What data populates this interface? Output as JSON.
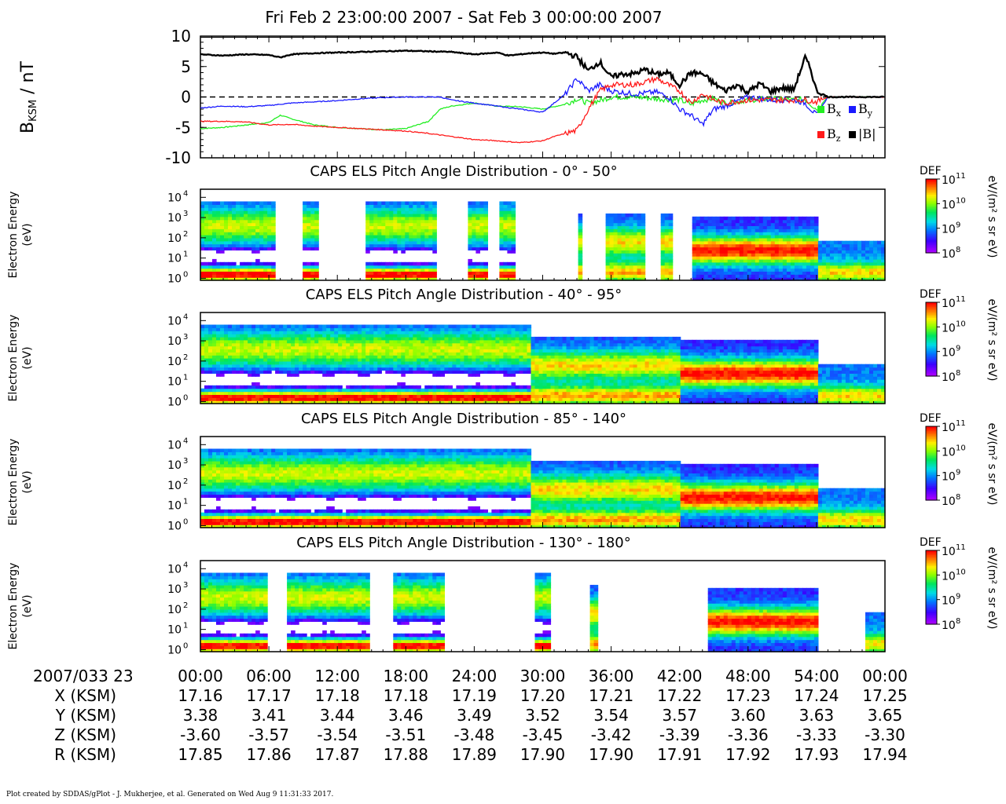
{
  "header": {
    "title": "Fri Feb 2 23:00:00 2007 - Sat Feb 3 00:00:00 2007"
  },
  "chart_data": [
    {
      "type": "line",
      "ylabel_main": "B",
      "ylabel_sub": "KSM",
      "ylabel_unit": " / nT",
      "ylim": [
        -10,
        10
      ],
      "yticks": [
        "10",
        "5",
        "0",
        "-5",
        "-10"
      ],
      "xlim_minutes": [
        0,
        60
      ],
      "zero_line": true,
      "legend_position": "bottom-right",
      "legend": [
        {
          "main": "B",
          "sub": "x",
          "color": "#22ee22"
        },
        {
          "main": "B",
          "sub": "y",
          "color": "#1a1aff"
        },
        {
          "main": "B",
          "sub": "z",
          "color": "#ff1a1a"
        },
        {
          "main": "|B|",
          "sub": "",
          "color": "#000000"
        }
      ],
      "series": [
        {
          "key": "Bx",
          "color": "#22ee22",
          "t": [
            0,
            2,
            4,
            6,
            7,
            8,
            10,
            12,
            14,
            16,
            18,
            20,
            21,
            22,
            24,
            26,
            28,
            30,
            32,
            33,
            34,
            35,
            36,
            38,
            40,
            42,
            43,
            44,
            45,
            46,
            48,
            50,
            52,
            53,
            54,
            55,
            60
          ],
          "v": [
            -5.2,
            -5,
            -4.6,
            -4.2,
            -3,
            -3.6,
            -4.6,
            -5,
            -5.2,
            -5.4,
            -5.2,
            -4,
            -2,
            -1.5,
            -1,
            -1.5,
            -1.6,
            -2,
            -1.2,
            -0.3,
            -1,
            -0.6,
            0,
            0,
            -0.3,
            -0.5,
            -1.2,
            -0.5,
            -0.3,
            -1,
            -0.5,
            -0.3,
            -0.5,
            -0.4,
            -2,
            0,
            0
          ]
        },
        {
          "key": "By",
          "color": "#1a1aff",
          "t": [
            0,
            2,
            4,
            6,
            8,
            10,
            12,
            14,
            16,
            18,
            20,
            21,
            22,
            24,
            26,
            28,
            30,
            31,
            32,
            33,
            34,
            35,
            36,
            38,
            40,
            41,
            42,
            43,
            44,
            45,
            46,
            48,
            50,
            52,
            53,
            54,
            55,
            60
          ],
          "v": [
            -1.8,
            -1.5,
            -1.6,
            -1.4,
            -1,
            -0.8,
            -0.6,
            -0.3,
            -0.1,
            0,
            0,
            0,
            -0.5,
            -1,
            -1.5,
            -2,
            -2.5,
            -1,
            0.5,
            3,
            1,
            2,
            1,
            0.5,
            0.8,
            0,
            -2,
            -3,
            -4.5,
            -2,
            -1.5,
            0,
            -0.5,
            -0.5,
            -1,
            -3,
            0,
            0
          ]
        },
        {
          "key": "Bz",
          "color": "#ff1a1a",
          "t": [
            0,
            2,
            4,
            6,
            8,
            10,
            12,
            14,
            16,
            18,
            20,
            22,
            24,
            26,
            28,
            30,
            31,
            32,
            33,
            34,
            35,
            36,
            38,
            40,
            42,
            43,
            44,
            45,
            46,
            48,
            50,
            52,
            53,
            54,
            55,
            60
          ],
          "v": [
            -4,
            -4,
            -4.1,
            -4.6,
            -4.5,
            -4.8,
            -5,
            -5.2,
            -5.4,
            -5.6,
            -6,
            -6.5,
            -7,
            -7.2,
            -7.5,
            -7.2,
            -6.5,
            -6,
            -5.5,
            -2,
            1,
            2,
            2,
            3,
            1,
            -1,
            0.5,
            -0.5,
            -1,
            -0.5,
            -0.5,
            -0.5,
            -0.5,
            -0.8,
            0,
            0
          ]
        },
        {
          "key": "Bmag",
          "color": "#000000",
          "t": [
            0,
            2,
            4,
            6,
            7,
            8,
            10,
            12,
            14,
            16,
            18,
            20,
            22,
            24,
            26,
            27,
            28,
            29,
            30,
            31,
            32,
            33,
            34,
            35,
            36,
            37,
            38,
            39,
            40,
            41,
            42,
            43,
            44,
            45,
            46,
            47,
            48,
            49,
            50,
            51,
            52,
            53,
            53.5,
            54,
            55,
            60
          ],
          "v": [
            7,
            6.8,
            7,
            6.9,
            6.5,
            7,
            7.2,
            7.3,
            7.4,
            7.5,
            7.6,
            7.5,
            7.4,
            7,
            7.3,
            6.8,
            7,
            7.2,
            7.3,
            7.1,
            7.3,
            6.6,
            4.3,
            5.8,
            3.2,
            3.8,
            3.8,
            4.5,
            3.7,
            4,
            2,
            4,
            3.8,
            2.2,
            1,
            2,
            0.8,
            2.2,
            0.9,
            1.5,
            1.2,
            6.5,
            4.5,
            1,
            0,
            0
          ]
        }
      ]
    },
    {
      "type": "heatmap",
      "title": "CAPS ELS Pitch Angle Distribution - 0° - 50°",
      "ylabel": "Electron Energy",
      "yunit": "(eV)",
      "ylim_log10": [
        -0.1,
        4.4
      ],
      "colorbar": {
        "label": "DEF",
        "unit": "eV/(m² s sr eV)",
        "ticks_log10": [
          8,
          9,
          10,
          11
        ]
      },
      "segments": [
        [
          0,
          6.6
        ],
        [
          9,
          10.2
        ],
        [
          14.5,
          20.6
        ],
        [
          23.4,
          25.2
        ],
        [
          26.1,
          27.6
        ],
        [
          33.1,
          33.6
        ],
        [
          35.6,
          38.9
        ],
        [
          40.2,
          41.4
        ],
        [
          43.2,
          45.4
        ],
        [
          45.4,
          53
        ],
        [
          53,
          60
        ]
      ],
      "pattern": "quiet"
    },
    {
      "type": "heatmap",
      "title": "CAPS ELS Pitch Angle Distribution - 40° - 95°",
      "ylabel": "Electron Energy",
      "yunit": "(eV)",
      "ylim_log10": [
        -0.1,
        4.4
      ],
      "colorbar": {
        "label": "DEF",
        "unit": "eV/(m² s sr eV)",
        "ticks_log10": [
          8,
          9,
          10,
          11
        ]
      },
      "segments": [
        [
          0,
          60
        ]
      ],
      "pattern": "transition"
    },
    {
      "type": "heatmap",
      "title": "CAPS ELS Pitch Angle Distribution - 85° - 140°",
      "ylabel": "Electron Energy",
      "yunit": "(eV)",
      "ylim_log10": [
        -0.1,
        4.4
      ],
      "colorbar": {
        "label": "DEF",
        "unit": "eV/(m² s sr eV)",
        "ticks_log10": [
          8,
          9,
          10,
          11
        ]
      },
      "segments": [
        [
          0,
          60
        ]
      ],
      "pattern": "transition"
    },
    {
      "type": "heatmap",
      "title": "CAPS ELS Pitch Angle Distribution - 130° - 180°",
      "ylabel": "Electron Energy",
      "yunit": "(eV)",
      "ylim_log10": [
        -0.1,
        4.4
      ],
      "colorbar": {
        "label": "DEF",
        "unit": "eV/(m² s sr eV)",
        "ticks_log10": [
          8,
          9,
          10,
          11
        ]
      },
      "segments": [
        [
          0,
          6
        ],
        [
          7.5,
          15
        ],
        [
          16.8,
          21.3
        ],
        [
          29.3,
          30.8
        ],
        [
          34,
          35
        ],
        [
          44.6,
          52.8
        ],
        [
          52.8,
          54
        ],
        [
          58.4,
          60
        ]
      ],
      "pattern": "quiet"
    }
  ],
  "ephemeris": {
    "date_label": "2007/033 23",
    "times": [
      "00:00",
      "06:00",
      "12:00",
      "18:00",
      "24:00",
      "30:00",
      "36:00",
      "42:00",
      "48:00",
      "54:00",
      "00:00"
    ],
    "rows": [
      {
        "label": "X (KSM)",
        "values": [
          "17.16",
          "17.17",
          "17.18",
          "17.18",
          "17.19",
          "17.20",
          "17.21",
          "17.22",
          "17.23",
          "17.24",
          "17.25"
        ]
      },
      {
        "label": "Y (KSM)",
        "values": [
          "3.38",
          "3.41",
          "3.44",
          "3.46",
          "3.49",
          "3.52",
          "3.54",
          "3.57",
          "3.60",
          "3.63",
          "3.65"
        ]
      },
      {
        "label": "Z (KSM)",
        "values": [
          "-3.60",
          "-3.57",
          "-3.54",
          "-3.51",
          "-3.48",
          "-3.45",
          "-3.42",
          "-3.39",
          "-3.36",
          "-3.33",
          "-3.30"
        ]
      },
      {
        "label": "R (KSM)",
        "values": [
          "17.85",
          "17.86",
          "17.87",
          "17.88",
          "17.89",
          "17.90",
          "17.90",
          "17.91",
          "17.92",
          "17.93",
          "17.94"
        ]
      }
    ]
  },
  "footer": {
    "text": "Plot created by SDDAS/gPlot - J. Mukherjee, et al.  Generated on Wed Aug 9 11:31:33 2017."
  }
}
